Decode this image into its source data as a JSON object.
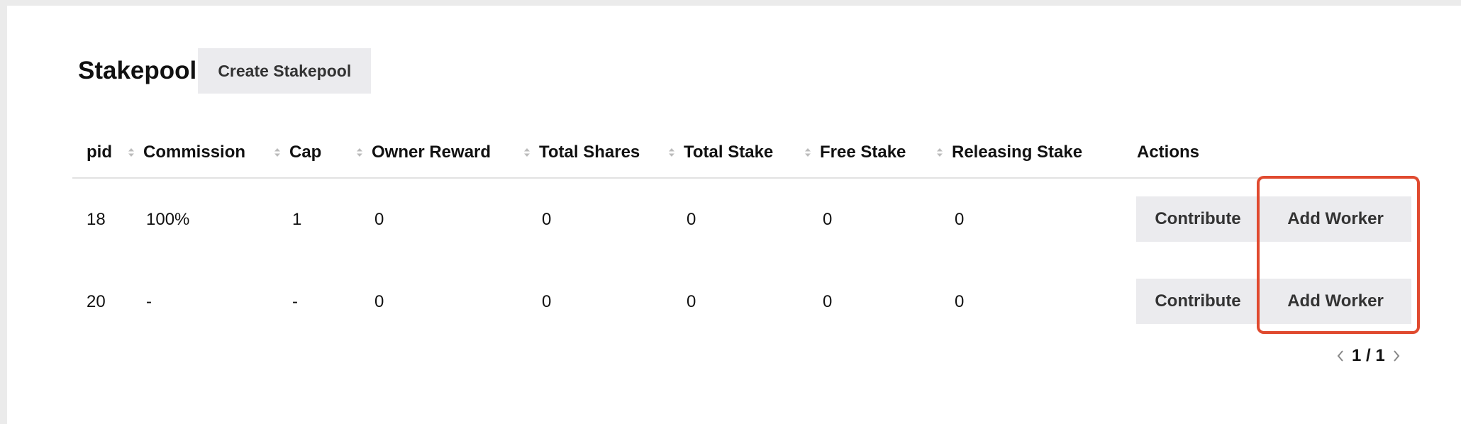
{
  "header": {
    "title": "Stakepool",
    "create_button": "Create Stakepool"
  },
  "table": {
    "columns": [
      {
        "label": "pid",
        "sortable": false
      },
      {
        "label": "Commission",
        "sortable": true
      },
      {
        "label": "Cap",
        "sortable": true
      },
      {
        "label": "Owner Reward",
        "sortable": true
      },
      {
        "label": "Total Shares",
        "sortable": true
      },
      {
        "label": "Total Stake",
        "sortable": true
      },
      {
        "label": "Free Stake",
        "sortable": true
      },
      {
        "label": "Releasing Stake",
        "sortable": true
      },
      {
        "label": "Actions",
        "sortable": false
      }
    ],
    "rows": [
      {
        "pid": "18",
        "commission": "100%",
        "cap": "1",
        "owner_reward": "0",
        "total_shares": "0",
        "total_stake": "0",
        "free_stake": "0",
        "releasing_stake": "0",
        "contribute": "Contribute",
        "add_worker": "Add Worker"
      },
      {
        "pid": "20",
        "commission": "-",
        "cap": "-",
        "owner_reward": "0",
        "total_shares": "0",
        "total_stake": "0",
        "free_stake": "0",
        "releasing_stake": "0",
        "contribute": "Contribute",
        "add_worker": "Add Worker"
      }
    ]
  },
  "pagination": {
    "text": "1 / 1"
  },
  "colors": {
    "highlight": "#e04a2f",
    "button_bg": "#ebebee",
    "page_bg": "#ebebeb"
  },
  "icons": [
    "sort-icon",
    "chevron-left-icon",
    "chevron-right-icon"
  ]
}
